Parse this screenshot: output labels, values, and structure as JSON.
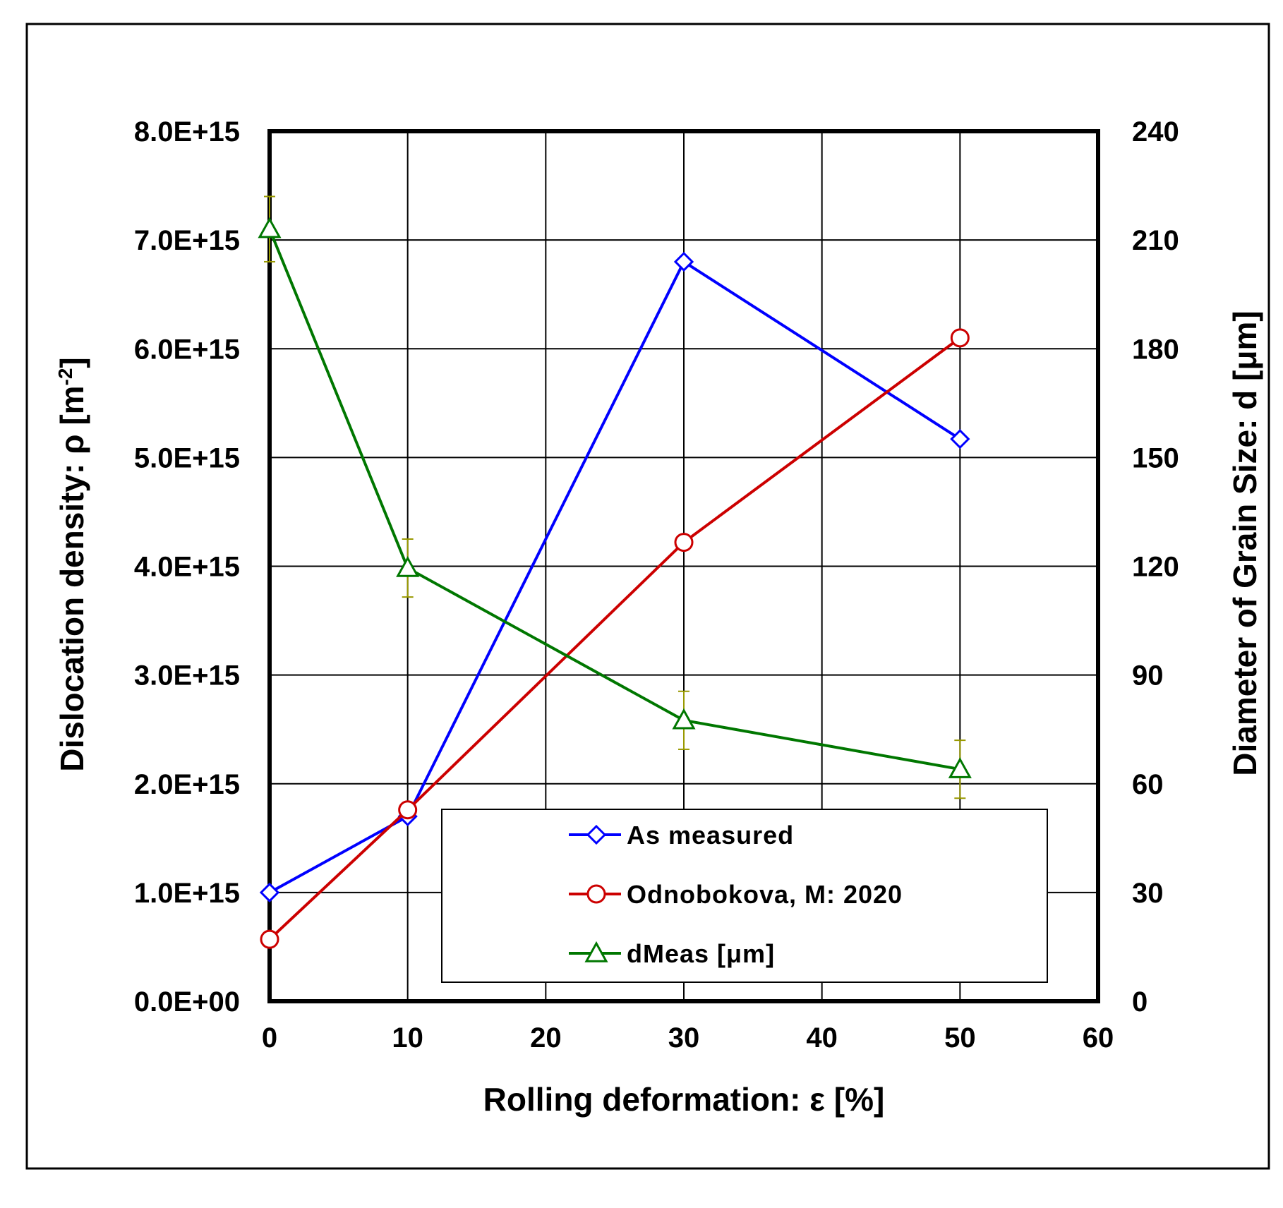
{
  "chart_data": {
    "type": "line",
    "x": [
      0,
      10,
      30,
      50
    ],
    "xlabel": "Rolling deformation: ε [%]",
    "xlim": [
      0,
      60
    ],
    "xticks": [
      "0",
      "10",
      "20",
      "30",
      "40",
      "50",
      "60"
    ],
    "ylabel_prefix": "Dislocation density: ρ [m",
    "ylabel_sup": "-2",
    "ylabel_suffix": "]",
    "ylim": [
      0,
      8000000000000000.0
    ],
    "yticks": [
      "0.0E+00",
      "1.0E+15",
      "2.0E+15",
      "3.0E+15",
      "4.0E+15",
      "5.0E+15",
      "6.0E+15",
      "7.0E+15",
      "8.0E+15"
    ],
    "y2label": "Diameter of Grain Size: d  [μm]",
    "y2lim": [
      0,
      240
    ],
    "y2ticks": [
      "0",
      "30",
      "60",
      "90",
      "120",
      "150",
      "180",
      "210",
      "240"
    ],
    "grid": true,
    "legend_position": "bottom-right",
    "series": [
      {
        "name": "As measured",
        "axis": "left",
        "marker": "diamond",
        "color": "#0000ff",
        "values": [
          1000000000000000.0,
          1700000000000000.0,
          6800000000000000.0,
          5170000000000000.0
        ]
      },
      {
        "name": "Odnobokova, M: 2020",
        "axis": "left",
        "marker": "circle",
        "color": "#cc0000",
        "values": [
          570000000000000.0,
          1760000000000000.0,
          4220000000000000.0,
          6100000000000000.0
        ]
      },
      {
        "name": "dMeas [μm]",
        "axis": "right",
        "marker": "triangle",
        "color": "#007700",
        "error_color": "#999900",
        "values": [
          213,
          119.5,
          77.5,
          64
        ],
        "errors": [
          9,
          8,
          8,
          8
        ]
      }
    ]
  }
}
